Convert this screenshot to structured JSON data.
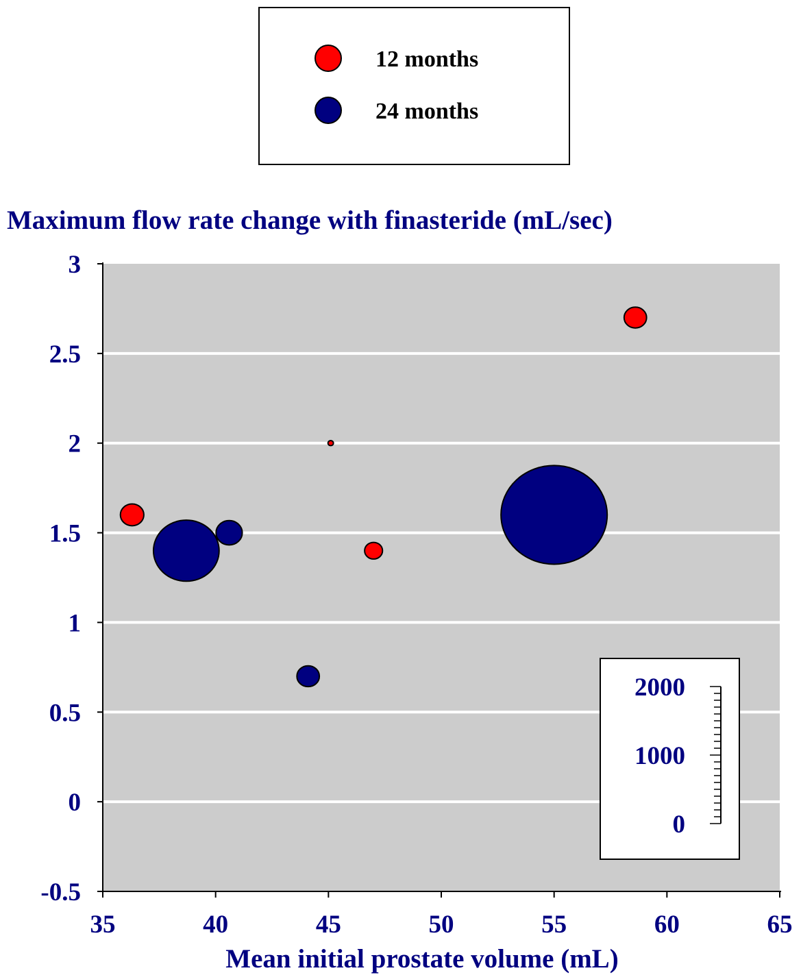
{
  "chart_data": {
    "type": "scatter",
    "title": "Maximum flow rate change with finasteride (mL/sec)",
    "xlabel": "Mean initial prostate volume (mL)",
    "ylabel": "",
    "xlim": [
      35,
      65
    ],
    "ylim": [
      -0.5,
      3
    ],
    "x_ticks": [
      "35",
      "40",
      "45",
      "50",
      "55",
      "60",
      "65"
    ],
    "y_ticks": [
      "-0.5",
      "0",
      "0.5",
      "1",
      "1.5",
      "2",
      "2.5",
      "3"
    ],
    "grid": true,
    "legend_position": "top-center",
    "bubble_size_scale": {
      "ticks": [
        "0",
        "1000",
        "2000"
      ],
      "max": 2000
    },
    "series": [
      {
        "name": "12 months",
        "color": "#ff0000",
        "points": [
          {
            "x": 36.3,
            "y": 1.6,
            "size": 60
          },
          {
            "x": 45.1,
            "y": 2.0,
            "size": 1
          },
          {
            "x": 47.0,
            "y": 1.4,
            "size": 35
          },
          {
            "x": 58.6,
            "y": 2.7,
            "size": 55
          }
        ]
      },
      {
        "name": "24 months",
        "color": "#000080",
        "points": [
          {
            "x": 38.7,
            "y": 1.4,
            "size": 470
          },
          {
            "x": 40.6,
            "y": 1.5,
            "size": 75
          },
          {
            "x": 44.1,
            "y": 0.7,
            "size": 55
          },
          {
            "x": 55.0,
            "y": 1.6,
            "size": 1230
          }
        ]
      }
    ]
  },
  "colors": {
    "plot_background": "#cccccc",
    "text": "#000080",
    "legend_text": "#000000"
  }
}
